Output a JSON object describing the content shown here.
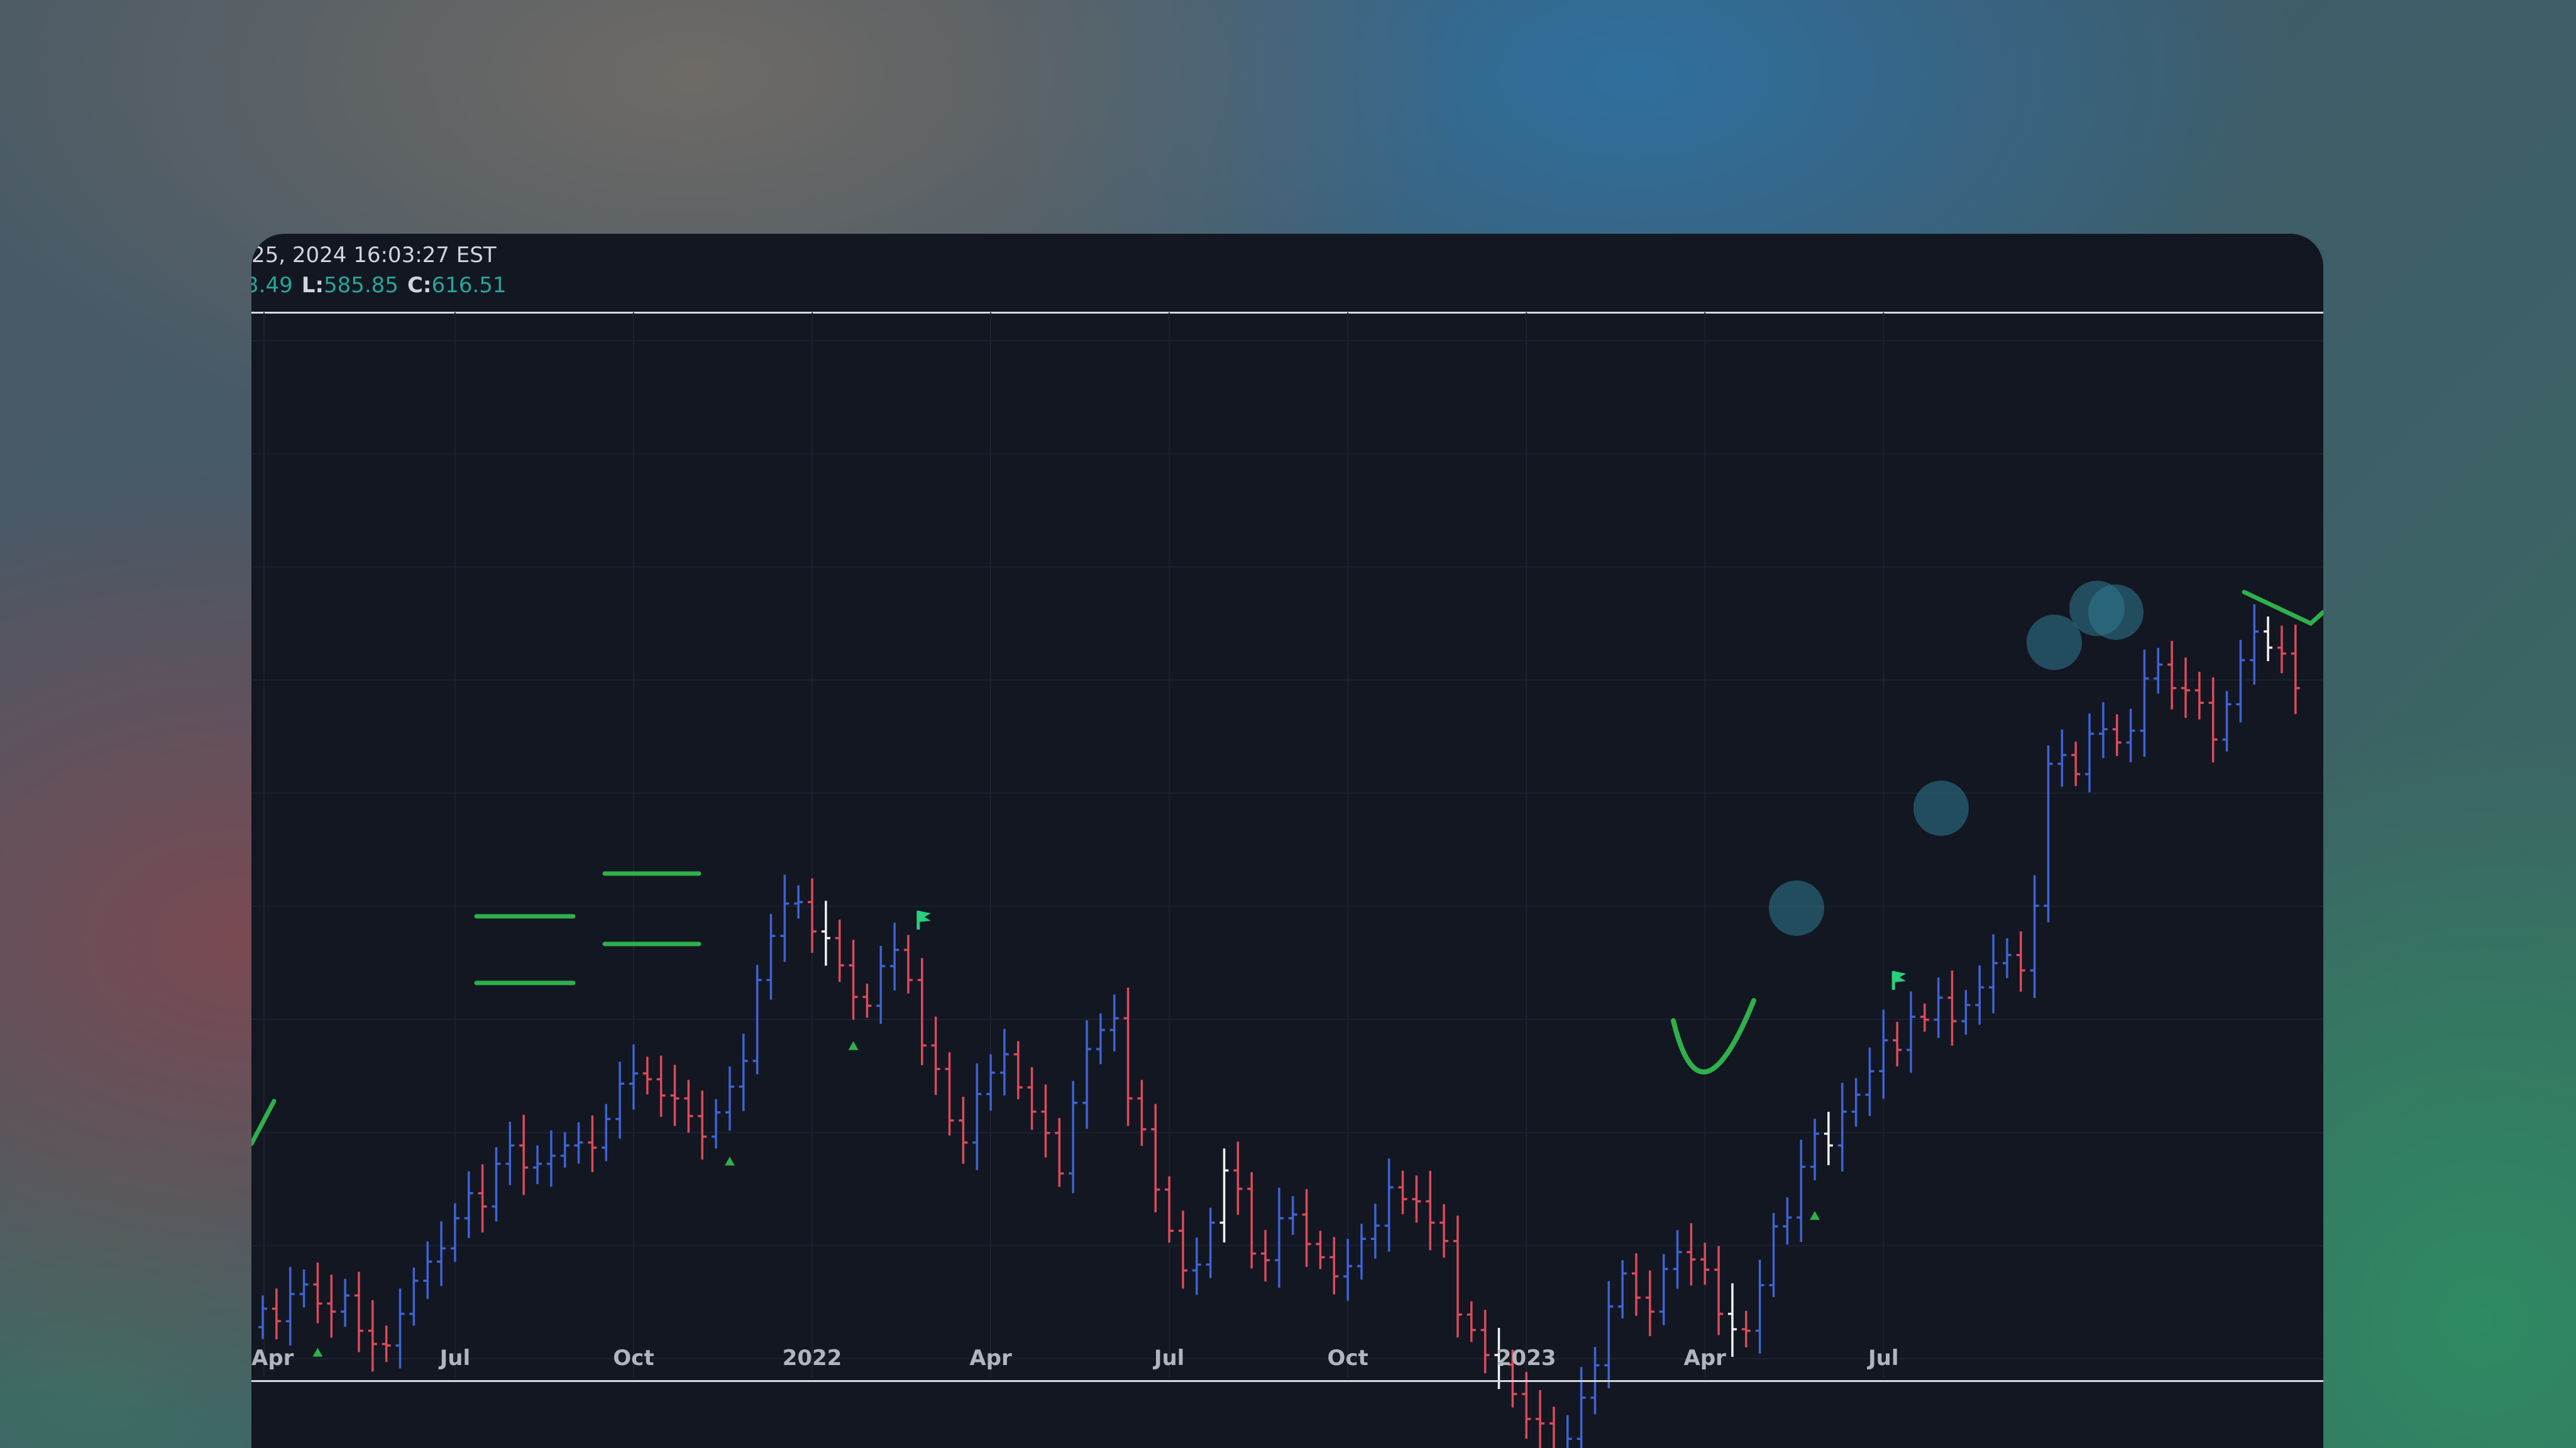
{
  "legend": {
    "datetime": "25, 2024 16:03:27 EST",
    "high_value": "3.49",
    "low_label": "L:",
    "low_value": "585.85",
    "close_label": "C:",
    "close_value": "616.51"
  },
  "colors": {
    "background": "#131722",
    "up_bar": "#3f63d4",
    "down_bar": "#dc4a5a",
    "highlight_bar": "#f2f2f2",
    "pattern_line": "#2fb04a",
    "marker": "#26d07c",
    "circle": "#2f7a8f",
    "value_text": "#26a69a"
  },
  "chart_data": {
    "type": "ohlc",
    "timeframe": "weekly",
    "xlabel": "",
    "ylabel": "",
    "grid": true,
    "x_ticks": [
      "Apr",
      "Jul",
      "Oct",
      "2022",
      "Apr",
      "Jul",
      "Oct",
      "2023",
      "Apr",
      "Jul"
    ],
    "closes": [
      414.5,
      412.8,
      416.5,
      417.8,
      415.2,
      414.1,
      416.3,
      411.5,
      409.7,
      409.5,
      413.8,
      418.3,
      420.9,
      422.7,
      426.8,
      430.2,
      428.4,
      434.2,
      436.7,
      433.7,
      434.2,
      435.3,
      436.7,
      437.1,
      436.4,
      440.3,
      445.1,
      446.5,
      445.7,
      443.5,
      443.1,
      440.7,
      437.9,
      441.2,
      444.7,
      448.2,
      459.2,
      465.2,
      469.6,
      469.8,
      465.8,
      464.9,
      461.2,
      456.9,
      455.7,
      461.1,
      463.3,
      459.2,
      450.3,
      447.1,
      440.1,
      437.1,
      443.7,
      446.6,
      449.1,
      444.6,
      441.3,
      438.4,
      432.9,
      442.5,
      449.8,
      452.4,
      454.0,
      443.1,
      438.9,
      430.7,
      425.1,
      419.7,
      420.5,
      426.2,
      433.3,
      430.8,
      422.0,
      421.1,
      426.8,
      427.3,
      423.3,
      421.5,
      418.9,
      420.3,
      424.0,
      425.8,
      431.0,
      429.4,
      429.1,
      426.2,
      423.7,
      413.7,
      411.6,
      408.2,
      406.9,
      402.9,
      399.5,
      398.9,
      393.2,
      396.8,
      402.4,
      406.8,
      414.8,
      419.3,
      416.0,
      414.1,
      419.9,
      422.2,
      421.2,
      419.8,
      413.8,
      411.7,
      411.5,
      417.7,
      425.7,
      426.9,
      433.8,
      438.3,
      436.7,
      441.3,
      443.6,
      446.8,
      451.0,
      449.7,
      454.2,
      453.8,
      456.8,
      453.6,
      455.8,
      458.2,
      461.5,
      462.6,
      460.5,
      469.3,
      488.6,
      489.8,
      487.2,
      492.7,
      493.3,
      491.5,
      493.1,
      500.2,
      502.1,
      498.9,
      498.6,
      496.9,
      491.9,
      496.7,
      502.7,
      506.6,
      504.4,
      503.6,
      498.9
    ],
    "highlighted_bars": [
      41,
      70,
      90,
      107,
      114,
      146
    ],
    "annotations": [
      {
        "type": "flag",
        "bar": 48
      },
      {
        "type": "flag",
        "bar": 119
      },
      {
        "type": "triangle_up",
        "bar": 4
      },
      {
        "type": "triangle_up",
        "bar": 34
      },
      {
        "type": "triangle_up",
        "bar": 43
      },
      {
        "type": "triangle_up",
        "bar": 113
      }
    ]
  }
}
